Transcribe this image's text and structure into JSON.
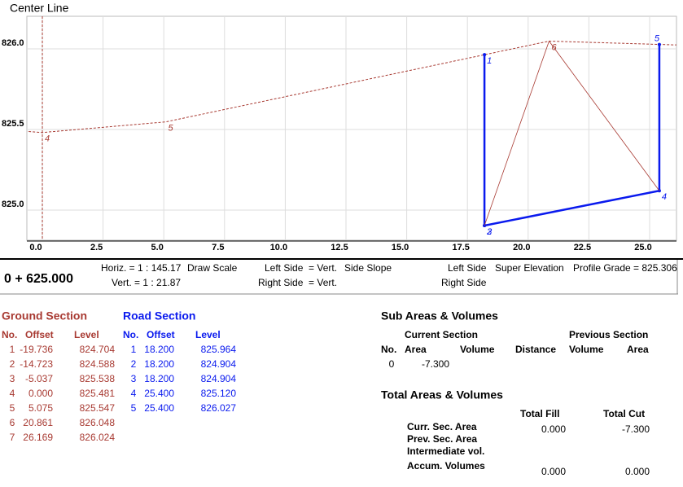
{
  "chart_data": {
    "type": "line",
    "title": "Center Line",
    "xlim": [
      -0.637,
      26.106
    ],
    "ylim": [
      824.813,
      826.202
    ],
    "xticks": [
      {
        "value": 0,
        "label": "0.0"
      },
      2.5,
      {
        "value": 5,
        "label": "5.0"
      },
      7.5,
      {
        "value": 10,
        "label": "10.0"
      },
      12.5,
      {
        "value": 15,
        "label": "15.0"
      },
      17.5,
      {
        "value": 20,
        "label": "20.0"
      },
      22.5,
      {
        "value": 25,
        "label": "25.0"
      }
    ],
    "yticks": [
      {
        "value": 825,
        "label": "825.0"
      },
      825.5,
      {
        "value": 826,
        "label": "826.0"
      }
    ],
    "grid": true,
    "ground_color": "#a83a32",
    "road_color": "#0a1aee"
  },
  "header": {
    "station": "0 + 625.000",
    "horiz": "Horiz. = 1 : 145.17",
    "draw_scale": "Draw Scale",
    "vert": "Vert. = 1 : 21.87",
    "side_left": "Left Side  = Vert.",
    "side_slope": "Side Slope",
    "side_right": "Right Side  = Vert.",
    "super_left": "Left Side",
    "super_elevation": "Super Elevation",
    "super_right": "Right Side",
    "profile_grade": "Profile Grade = 825.306"
  },
  "ground_section": {
    "title": "Ground Section",
    "columns": [
      "No.",
      "Offset",
      "Level"
    ],
    "rows": [
      [
        "1",
        "-19.736",
        "824.704"
      ],
      [
        "2",
        "-14.723",
        "824.588"
      ],
      [
        "3",
        "-5.037",
        "825.538"
      ],
      [
        "4",
        "0.000",
        "825.481"
      ],
      [
        "5",
        "5.075",
        "825.547"
      ],
      [
        "6",
        "20.861",
        "826.048"
      ],
      [
        "7",
        "26.169",
        "826.024"
      ]
    ]
  },
  "road_section": {
    "title": "Road Section",
    "columns": [
      "No.",
      "Offset",
      "Level"
    ],
    "rows": [
      [
        "1",
        "18.200",
        "825.964"
      ],
      [
        "2",
        "18.200",
        "824.904"
      ],
      [
        "3",
        "18.200",
        "824.904"
      ],
      [
        "4",
        "25.400",
        "825.120"
      ],
      [
        "5",
        "25.400",
        "826.027"
      ]
    ]
  },
  "sub_areas": {
    "title": "Sub Areas & Volumes",
    "current": "Current Section",
    "previous": "Previous Section",
    "columns": [
      "No.",
      "Area",
      "Volume",
      "Distance",
      "Volume",
      "Area"
    ],
    "rows": [
      [
        "0",
        "-7.300"
      ]
    ]
  },
  "totals": {
    "title": "Total Areas & Volumes",
    "columns": [
      "Total Fill",
      "Total Cut"
    ],
    "rows": [
      {
        "label": "Curr. Sec. Area",
        "fill": "0.000",
        "cut": "-7.300"
      },
      {
        "label": "Prev. Sec. Area"
      },
      {
        "label": "Intermediate vol."
      },
      {
        "label": "Accum. Volumes",
        "fill": "0.000",
        "cut": "0.000"
      }
    ]
  }
}
